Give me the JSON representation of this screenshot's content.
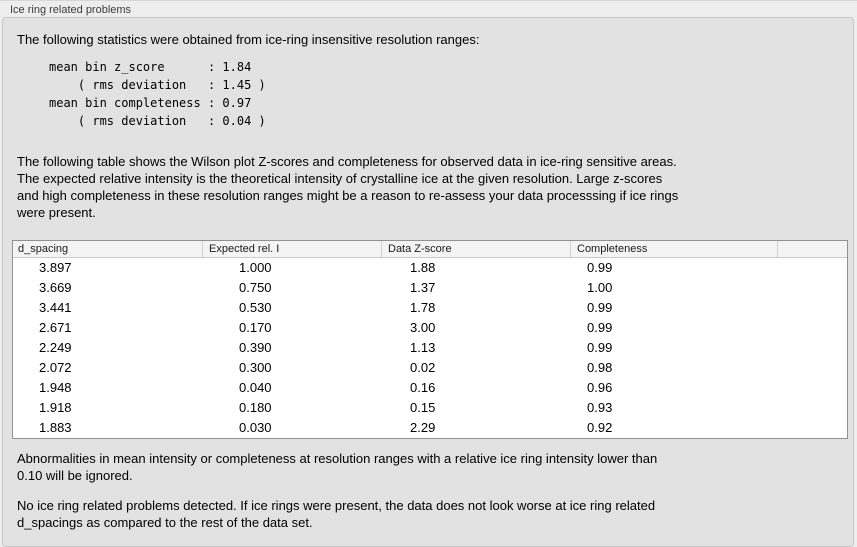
{
  "panel": {
    "title": "Ice ring related problems"
  },
  "intro": {
    "text": "The following statistics were obtained from ice-ring insensitive resolution ranges:",
    "stats_text": "mean bin z_score      : 1.84\n    ( rms deviation   : 1.45 )\nmean bin completeness : 0.97\n    ( rms deviation   : 0.04 )",
    "stats_values": {
      "mean_bin_z_score": "1.84",
      "z_score_rms_deviation": "1.45",
      "mean_bin_completeness": "0.97",
      "completeness_rms_deviation": "0.04"
    }
  },
  "description": {
    "lines": [
      "The following table shows the Wilson plot Z-scores and completeness for observed data in ice-ring sensitive areas.",
      "The expected relative intensity is the theoretical intensity of crystalline ice at the given resolution. Large z-scores",
      "and high completeness in these resolution ranges might be a reason to re-assess your data processsing if ice rings",
      "were present."
    ]
  },
  "table": {
    "columns": [
      "d_spacing",
      "Expected rel. I",
      "Data Z-score",
      "Completeness"
    ],
    "rows": [
      [
        "3.897",
        "1.000",
        "1.88",
        "0.99"
      ],
      [
        "3.669",
        "0.750",
        "1.37",
        "1.00"
      ],
      [
        "3.441",
        "0.530",
        "1.78",
        "0.99"
      ],
      [
        "2.671",
        "0.170",
        "3.00",
        "0.99"
      ],
      [
        "2.249",
        "0.390",
        "1.13",
        "0.99"
      ],
      [
        "2.072",
        "0.300",
        "0.02",
        "0.98"
      ],
      [
        "1.948",
        "0.040",
        "0.16",
        "0.96"
      ],
      [
        "1.918",
        "0.180",
        "0.15",
        "0.93"
      ],
      [
        "1.883",
        "0.030",
        "2.29",
        "0.92"
      ]
    ]
  },
  "notes": {
    "ignore_lines": [
      "Abnormalities in mean intensity or completeness at resolution ranges with a relative ice ring intensity lower than",
      "0.10 will be ignored."
    ],
    "conclusion_lines": [
      "No ice ring related problems detected. If ice rings were present, the data does not look worse at ice ring related",
      "d_spacings as compared to the rest of the data set."
    ]
  },
  "colors": {
    "page_background": "#ededed",
    "groupbox_background": "#e2e2e2",
    "table_background": "#ffffff",
    "table_border": "#919191",
    "header_background": "#f4f4f4"
  }
}
